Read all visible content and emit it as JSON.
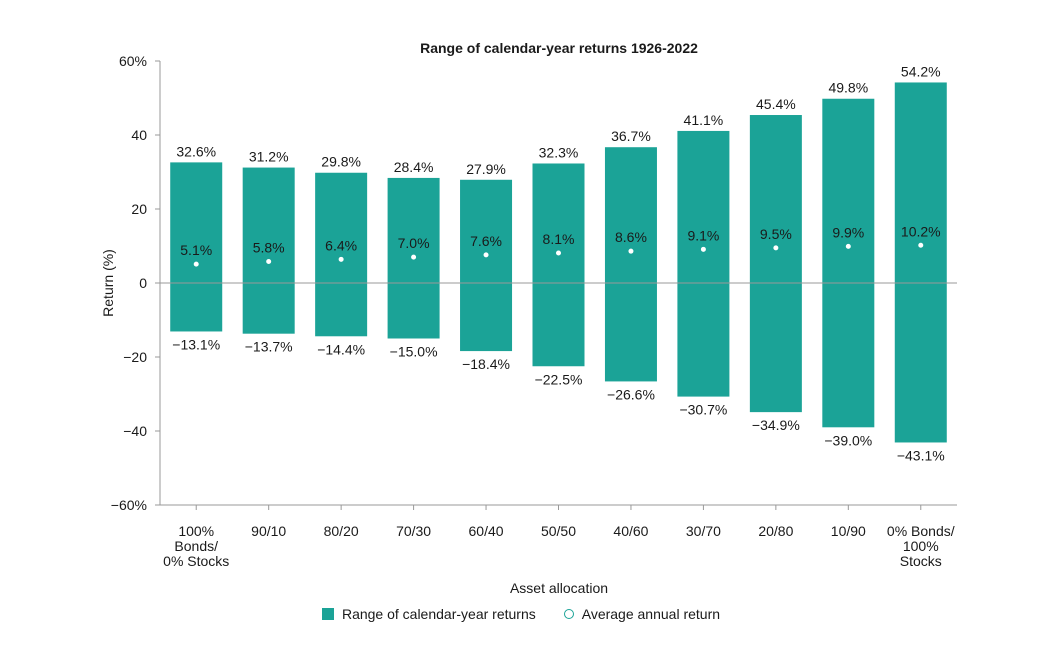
{
  "colors": {
    "bar": "#1ba397",
    "axis": "#999999",
    "text": "#1a1a1a"
  },
  "chart_data": {
    "type": "bar",
    "title": "Range of calendar-year returns 1926-2022",
    "xlabel": "Asset allocation",
    "ylabel": "Return (%)",
    "ylim": [
      -60,
      60
    ],
    "yticks": [
      60,
      40,
      20,
      0,
      -20,
      -40,
      -60
    ],
    "ytick_labels": [
      "60%",
      "40",
      "20",
      "0",
      "−20",
      "−40",
      "−60%"
    ],
    "categories": [
      [
        "100%",
        "Bonds/",
        "0% Stocks"
      ],
      [
        "90/10"
      ],
      [
        "80/20"
      ],
      [
        "70/30"
      ],
      [
        "60/40"
      ],
      [
        "50/50"
      ],
      [
        "40/60"
      ],
      [
        "30/70"
      ],
      [
        "20/80"
      ],
      [
        "10/90"
      ],
      [
        "0% Bonds/",
        "100%",
        "Stocks"
      ]
    ],
    "series": [
      {
        "name": "Range of calendar-year returns",
        "high": [
          32.6,
          31.2,
          29.8,
          28.4,
          27.9,
          32.3,
          36.7,
          41.1,
          45.4,
          49.8,
          54.2
        ],
        "low": [
          -13.1,
          -13.7,
          -14.4,
          -15.0,
          -18.4,
          -22.5,
          -26.6,
          -30.7,
          -34.9,
          -39.0,
          -43.1
        ],
        "high_labels": [
          "32.6%",
          "31.2%",
          "29.8%",
          "28.4%",
          "27.9%",
          "32.3%",
          "36.7%",
          "41.1%",
          "45.4%",
          "49.8%",
          "54.2%"
        ],
        "low_labels": [
          "−13.1%",
          "−13.7%",
          "−14.4%",
          "−15.0%",
          "−18.4%",
          "−22.5%",
          "−26.6%",
          "−30.7%",
          "−34.9%",
          "−39.0%",
          "−43.1%"
        ]
      },
      {
        "name": "Average annual return",
        "values": [
          5.1,
          5.8,
          6.4,
          7.0,
          7.6,
          8.1,
          8.6,
          9.1,
          9.5,
          9.9,
          10.2
        ],
        "labels": [
          "5.1%",
          "5.8%",
          "6.4%",
          "7.0%",
          "7.6%",
          "8.1%",
          "8.6%",
          "9.1%",
          "9.5%",
          "9.9%",
          "10.2%"
        ]
      }
    ],
    "grid": false,
    "legend_position": "bottom"
  },
  "legend": {
    "range_label": "Range of calendar-year returns",
    "avg_label": "Average annual return"
  }
}
